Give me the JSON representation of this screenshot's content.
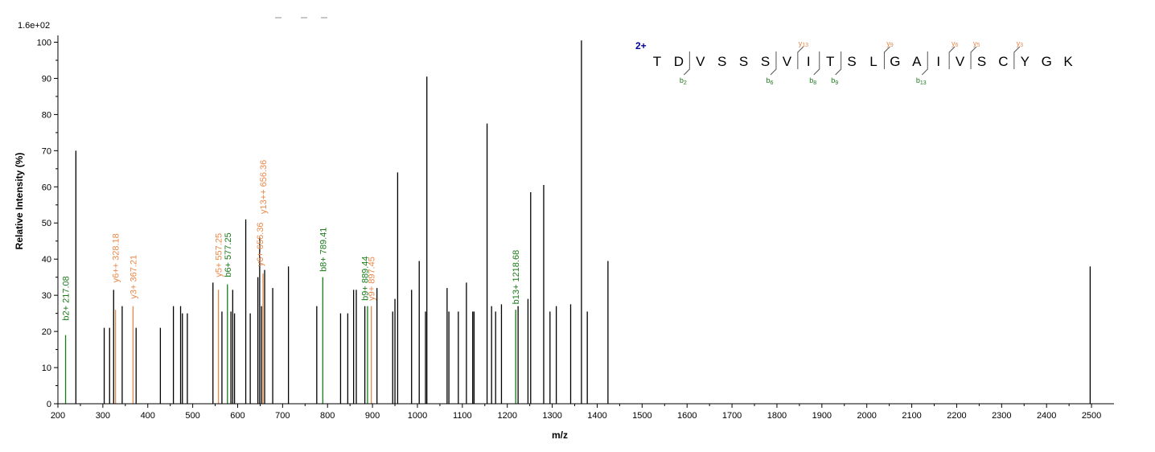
{
  "chart_data": {
    "type": "bar",
    "subtype": "mass-spectrum-stick",
    "title": "",
    "xlabel": "m/z",
    "ylabel": "Relative   Intensity (%)",
    "max_intensity_label": "1.6e+02",
    "xlim": [
      200,
      2550
    ],
    "ylim": [
      0,
      101
    ],
    "x_ticks": [
      200,
      300,
      400,
      500,
      600,
      700,
      800,
      900,
      1000,
      1100,
      1200,
      1300,
      1400,
      1500,
      1600,
      1700,
      1800,
      1900,
      2000,
      2100,
      2200,
      2300,
      2400,
      2500
    ],
    "y_ticks": [
      0,
      10,
      20,
      30,
      40,
      50,
      60,
      70,
      80,
      90,
      100
    ],
    "colors": {
      "unassigned": "#000000",
      "b_ion": "#1a7a1a",
      "y_ion": "#e8894a",
      "charge": "#000099"
    },
    "peaks": [
      {
        "mz": 217.08,
        "intensity": 19,
        "ion": "b"
      },
      {
        "mz": 240,
        "intensity": 70
      },
      {
        "mz": 303,
        "intensity": 21
      },
      {
        "mz": 315,
        "intensity": 21
      },
      {
        "mz": 324,
        "intensity": 31.5
      },
      {
        "mz": 328.18,
        "intensity": 26,
        "ion": "y"
      },
      {
        "mz": 343,
        "intensity": 27
      },
      {
        "mz": 367.21,
        "intensity": 27,
        "ion": "y"
      },
      {
        "mz": 374,
        "intensity": 21
      },
      {
        "mz": 428,
        "intensity": 21
      },
      {
        "mz": 457,
        "intensity": 27
      },
      {
        "mz": 473,
        "intensity": 27
      },
      {
        "mz": 477,
        "intensity": 25
      },
      {
        "mz": 488,
        "intensity": 25
      },
      {
        "mz": 545,
        "intensity": 33.5
      },
      {
        "mz": 557.25,
        "intensity": 31.5,
        "ion": "y"
      },
      {
        "mz": 565,
        "intensity": 25.5
      },
      {
        "mz": 577.25,
        "intensity": 33,
        "ion": "b"
      },
      {
        "mz": 585,
        "intensity": 25.5
      },
      {
        "mz": 589,
        "intensity": 31.5
      },
      {
        "mz": 593,
        "intensity": 25
      },
      {
        "mz": 618,
        "intensity": 51
      },
      {
        "mz": 628,
        "intensity": 25
      },
      {
        "mz": 645,
        "intensity": 35
      },
      {
        "mz": 649,
        "intensity": 46
      },
      {
        "mz": 653,
        "intensity": 27
      },
      {
        "mz": 656.36,
        "intensity": 36,
        "ion": "y"
      },
      {
        "mz": 660,
        "intensity": 37
      },
      {
        "mz": 678,
        "intensity": 32
      },
      {
        "mz": 713,
        "intensity": 38
      },
      {
        "mz": 776,
        "intensity": 27
      },
      {
        "mz": 789.41,
        "intensity": 35,
        "ion": "b"
      },
      {
        "mz": 829,
        "intensity": 25
      },
      {
        "mz": 845,
        "intensity": 25
      },
      {
        "mz": 858,
        "intensity": 31.5
      },
      {
        "mz": 864,
        "intensity": 31.5
      },
      {
        "mz": 883,
        "intensity": 27
      },
      {
        "mz": 889,
        "intensity": 27,
        "ion": "b"
      },
      {
        "mz": 897.45,
        "intensity": 27,
        "ion": "y"
      },
      {
        "mz": 910,
        "intensity": 32
      },
      {
        "mz": 945,
        "intensity": 25.5
      },
      {
        "mz": 950,
        "intensity": 29
      },
      {
        "mz": 956,
        "intensity": 64
      },
      {
        "mz": 987,
        "intensity": 31.5
      },
      {
        "mz": 1004,
        "intensity": 39.5
      },
      {
        "mz": 1018,
        "intensity": 25.5
      },
      {
        "mz": 1021,
        "intensity": 90.5
      },
      {
        "mz": 1066,
        "intensity": 32
      },
      {
        "mz": 1070,
        "intensity": 25.5
      },
      {
        "mz": 1091,
        "intensity": 25.5
      },
      {
        "mz": 1109,
        "intensity": 33.5
      },
      {
        "mz": 1123,
        "intensity": 25.5
      },
      {
        "mz": 1126,
        "intensity": 25.5
      },
      {
        "mz": 1155,
        "intensity": 77.5
      },
      {
        "mz": 1165,
        "intensity": 27
      },
      {
        "mz": 1174,
        "intensity": 25.5
      },
      {
        "mz": 1187,
        "intensity": 27.5
      },
      {
        "mz": 1218.68,
        "intensity": 26,
        "ion": "b"
      },
      {
        "mz": 1224,
        "intensity": 27
      },
      {
        "mz": 1246,
        "intensity": 29
      },
      {
        "mz": 1252,
        "intensity": 58.5
      },
      {
        "mz": 1281,
        "intensity": 60.5
      },
      {
        "mz": 1295,
        "intensity": 25.5
      },
      {
        "mz": 1309,
        "intensity": 27
      },
      {
        "mz": 1341,
        "intensity": 27.5
      },
      {
        "mz": 1365,
        "intensity": 100.5
      },
      {
        "mz": 1378,
        "intensity": 25.5
      },
      {
        "mz": 1424,
        "intensity": 39.5
      },
      {
        "mz": 2497,
        "intensity": 38
      }
    ],
    "annotations": [
      {
        "text": "b2+ 217.08",
        "mz": 217.08,
        "y": 23,
        "color": "b_ion"
      },
      {
        "text": "y6++ 328.18",
        "mz": 328.18,
        "y": 33.5,
        "color": "y_ion"
      },
      {
        "text": "y3+ 367.21",
        "mz": 367.21,
        "y": 29,
        "color": "y_ion"
      },
      {
        "text": "y5+ 557.25",
        "mz": 557.25,
        "y": 35,
        "color": "y_ion"
      },
      {
        "text": "b6+ 577.25",
        "mz": 577.25,
        "y": 35,
        "color": "b_ion"
      },
      {
        "text": "y13++ 656.36",
        "mz": 656.36,
        "y": 52.5,
        "color": "y_ion"
      },
      {
        "text": "y6+ 656.36",
        "mz": 649,
        "y": 38,
        "color": "y_ion"
      },
      {
        "text": "b8+ 789.41",
        "mz": 789.41,
        "y": 36.5,
        "color": "b_ion"
      },
      {
        "text": "b9+ 889.44",
        "mz": 883,
        "y": 28.5,
        "color": "b_ion"
      },
      {
        "text": "y9+ 897.45",
        "mz": 897.45,
        "y": 28.5,
        "color": "y_ion"
      },
      {
        "text": "b13+ 1218.68",
        "mz": 1218.68,
        "y": 27.5,
        "color": "b_ion"
      }
    ],
    "sequence": {
      "charge_label": "2+",
      "residues": [
        "T",
        "D",
        "V",
        "S",
        "S",
        "S",
        "V",
        "I",
        "T",
        "S",
        "L",
        "G",
        "A",
        "I",
        "V",
        "S",
        "C",
        "Y",
        "G",
        "K"
      ],
      "b_ions": [
        {
          "after": 2,
          "label": "b",
          "sub": "2"
        },
        {
          "after": 6,
          "label": "b",
          "sub": "6"
        },
        {
          "after": 8,
          "label": "b",
          "sub": "8"
        },
        {
          "after": 9,
          "label": "b",
          "sub": "9"
        },
        {
          "after": 13,
          "label": "b",
          "sub": "13"
        }
      ],
      "y_ions": [
        {
          "after": 7,
          "label": "y",
          "sub": "13"
        },
        {
          "after": 11,
          "label": "y",
          "sub": "9"
        },
        {
          "after": 14,
          "label": "y",
          "sub": "6"
        },
        {
          "after": 15,
          "label": "y",
          "sub": "5"
        },
        {
          "after": 17,
          "label": "y",
          "sub": "3"
        }
      ]
    }
  }
}
